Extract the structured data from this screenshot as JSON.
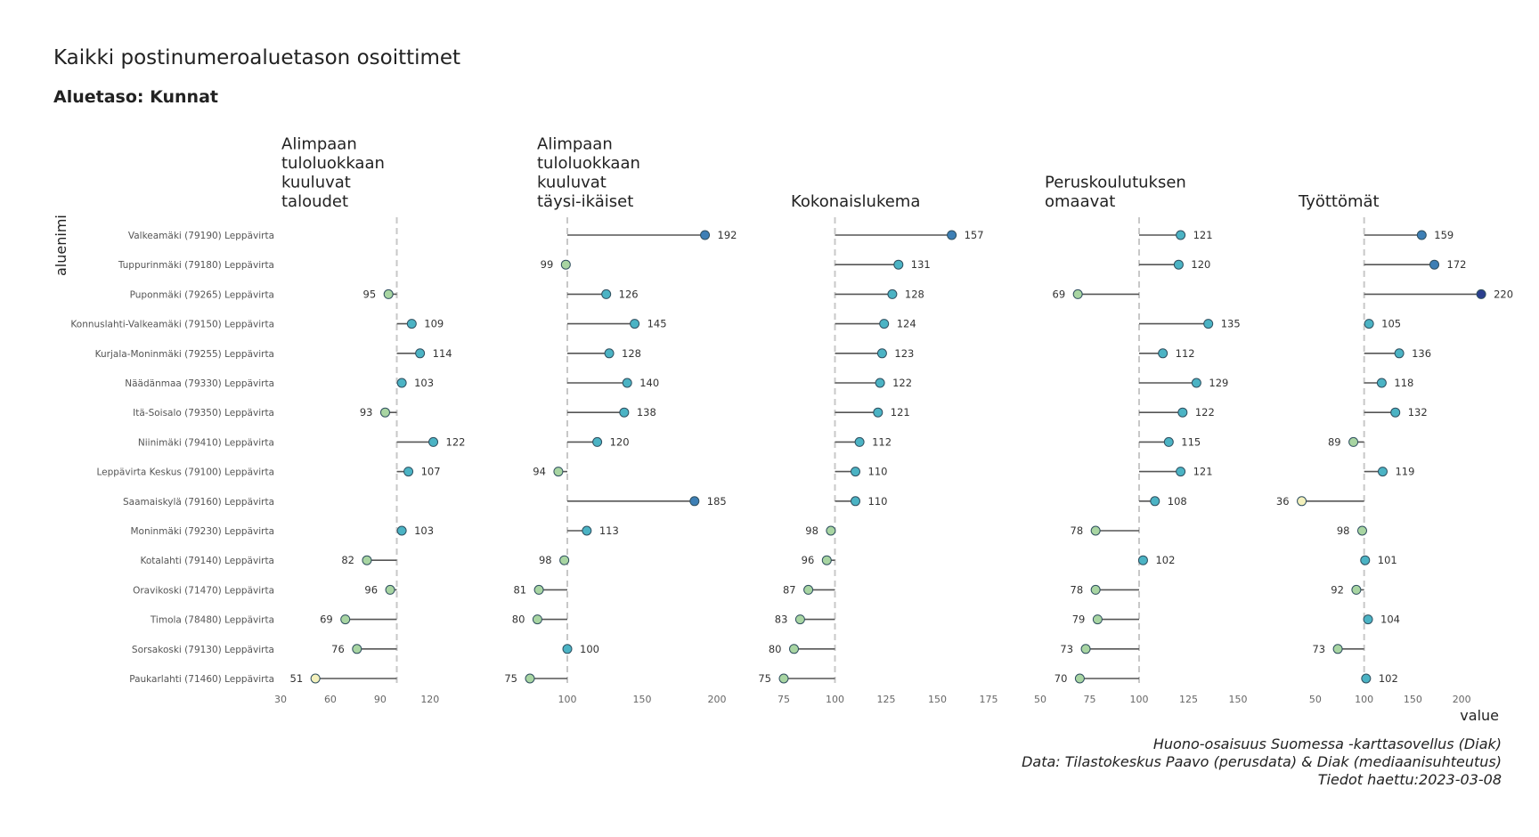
{
  "header": {
    "title": "Kaikki postinumeroaluetason osoittimet",
    "subtitle": "Aluetaso: Kunnat"
  },
  "caption": {
    "line1": "Huono-osaisuus Suomessa -karttasovellus (Diak)",
    "line2": "Data: Tilastokeskus Paavo (perusdata) & Diak (mediaanisuhteutus)",
    "line3": "Tiedot haettu:2023-03-08"
  },
  "colors": {
    "low": "#a8d5a2",
    "mid": "#4bb3c4",
    "high": "#3d7fb5",
    "very_high": "#2b3f8f",
    "very_low": "#f4f1bc",
    "stem": "#555555",
    "reference": "#c8c8c8"
  },
  "chart_data": {
    "type": "lollipop",
    "reference_value": 100,
    "xlabel": "value",
    "ylabel": "aluenimi",
    "categories": [
      "Valkeamäki (79190) Leppävirta",
      "Tuppurinmäki (79180) Leppävirta",
      "Puponmäki (79265) Leppävirta",
      "Konnuslahti-Valkeamäki (79150) Leppävirta",
      "Kurjala-Moninmäki (79255) Leppävirta",
      "Näädänmaa (79330) Leppävirta",
      "Itä-Soisalo (79350) Leppävirta",
      "Niinimäki (79410) Leppävirta",
      "Leppävirta Keskus (79100) Leppävirta",
      "Saamaiskylä (79160) Leppävirta",
      "Moninmäki (79230) Leppävirta",
      "Kotalahti (79140) Leppävirta",
      "Oravikoski (71470) Leppävirta",
      "Timola (78480) Leppävirta",
      "Sorsakoski (79130) Leppävirta",
      "Paukarlahti (71460) Leppävirta"
    ],
    "panels": [
      {
        "title": "Alimpaan tuloluokkaan kuuluvat taloudet",
        "title_lines": [
          "Alimpaan",
          "tuloluokkaan",
          "kuuluvat",
          "taloudet"
        ],
        "xlim": [
          30,
          126
        ],
        "ticks": [
          30,
          60,
          90,
          120
        ],
        "values": [
          null,
          null,
          95,
          109,
          114,
          103,
          93,
          122,
          107,
          null,
          103,
          82,
          96,
          69,
          76,
          51
        ]
      },
      {
        "title": "Alimpaan tuloluokkaan kuuluvat täysi-ikäiset",
        "title_lines": [
          "Alimpaan",
          "tuloluokkaan",
          "kuuluvat",
          "täysi-ikäiset"
        ],
        "xlim": [
          75,
          200
        ],
        "ticks": [
          100,
          150,
          200
        ],
        "values": [
          192,
          99,
          126,
          145,
          128,
          140,
          138,
          120,
          94,
          185,
          113,
          98,
          81,
          80,
          100,
          75
        ]
      },
      {
        "title": "Kokonaislukema",
        "title_lines": [
          "Kokonaislukema"
        ],
        "xlim": [
          75,
          175
        ],
        "ticks": [
          75,
          100,
          125,
          150,
          175
        ],
        "values": [
          157,
          131,
          128,
          124,
          123,
          122,
          121,
          112,
          110,
          110,
          98,
          96,
          87,
          83,
          80,
          75
        ]
      },
      {
        "title": "Peruskoulutuksen omaavat",
        "title_lines": [
          "Peruskoulutuksen",
          "omaavat"
        ],
        "xlim": [
          50,
          150
        ],
        "ticks": [
          50,
          75,
          100,
          125,
          150
        ],
        "values": [
          121,
          120,
          69,
          135,
          112,
          129,
          122,
          115,
          121,
          108,
          78,
          102,
          78,
          79,
          73,
          70
        ]
      },
      {
        "title": "Työttömät",
        "title_lines": [
          "Työttömät"
        ],
        "xlim": [
          30,
          240
        ],
        "ticks": [
          50,
          100,
          150,
          200
        ],
        "values": [
          159,
          172,
          220,
          105,
          136,
          118,
          132,
          89,
          119,
          36,
          98,
          101,
          92,
          104,
          73,
          102
        ]
      }
    ]
  }
}
